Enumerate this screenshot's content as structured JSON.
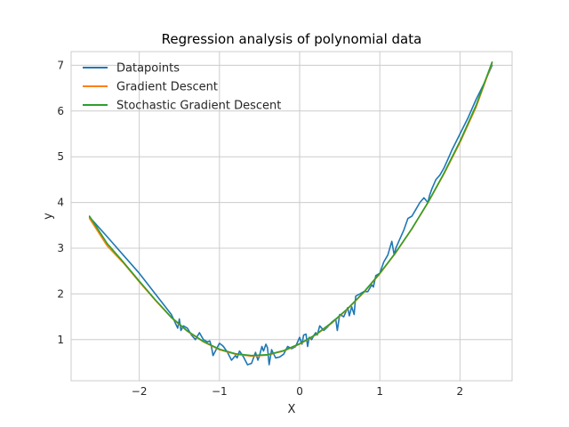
{
  "chart_data": {
    "type": "line",
    "title": "Regression analysis of polynomial data",
    "xlabel": "X",
    "ylabel": "y",
    "xlim": [
      -2.85,
      2.65
    ],
    "ylim": [
      0.1,
      7.3
    ],
    "xticks": [
      -2,
      -1,
      0,
      1,
      2
    ],
    "xtick_labels": [
      "−2",
      "−1",
      "0",
      "1",
      "2"
    ],
    "yticks": [
      1,
      2,
      3,
      4,
      5,
      6,
      7
    ],
    "ytick_labels": [
      "1",
      "2",
      "3",
      "4",
      "5",
      "6",
      "7"
    ],
    "grid": true,
    "legend_position": "top-left",
    "series": [
      {
        "name": "Datapoints",
        "color": "#1f77b4",
        "x": [
          -2.62,
          -2.4,
          -2.2,
          -2.0,
          -1.8,
          -1.6,
          -1.52,
          -1.5,
          -1.48,
          -1.45,
          -1.4,
          -1.35,
          -1.3,
          -1.25,
          -1.2,
          -1.15,
          -1.12,
          -1.1,
          -1.08,
          -1.0,
          -0.97,
          -0.95,
          -0.9,
          -0.85,
          -0.8,
          -0.78,
          -0.75,
          -0.7,
          -0.65,
          -0.6,
          -0.55,
          -0.52,
          -0.5,
          -0.47,
          -0.45,
          -0.42,
          -0.4,
          -0.38,
          -0.35,
          -0.3,
          -0.25,
          -0.2,
          -0.15,
          -0.1,
          -0.05,
          0.0,
          0.03,
          0.05,
          0.08,
          0.1,
          0.12,
          0.15,
          0.18,
          0.2,
          0.22,
          0.25,
          0.3,
          0.35,
          0.4,
          0.45,
          0.47,
          0.5,
          0.55,
          0.6,
          0.62,
          0.65,
          0.68,
          0.7,
          0.75,
          0.8,
          0.85,
          0.9,
          0.92,
          0.95,
          1.0,
          1.05,
          1.1,
          1.15,
          1.18,
          1.2,
          1.25,
          1.3,
          1.35,
          1.4,
          1.45,
          1.5,
          1.55,
          1.6,
          1.62,
          1.65,
          1.7,
          1.75,
          1.8,
          1.85,
          1.9,
          2.0,
          2.1,
          2.2,
          2.3,
          2.4
        ],
        "y": [
          3.68,
          3.25,
          2.85,
          2.45,
          2.0,
          1.55,
          1.25,
          1.45,
          1.2,
          1.3,
          1.25,
          1.1,
          1.0,
          1.15,
          1.0,
          0.95,
          0.97,
          0.85,
          0.65,
          0.92,
          0.88,
          0.85,
          0.72,
          0.55,
          0.65,
          0.6,
          0.75,
          0.62,
          0.45,
          0.48,
          0.72,
          0.55,
          0.65,
          0.85,
          0.75,
          0.9,
          0.82,
          0.45,
          0.78,
          0.6,
          0.62,
          0.68,
          0.85,
          0.8,
          0.85,
          1.05,
          0.9,
          1.1,
          1.12,
          0.85,
          1.05,
          1.0,
          1.1,
          1.15,
          1.1,
          1.3,
          1.2,
          1.28,
          1.38,
          1.45,
          1.2,
          1.55,
          1.5,
          1.7,
          1.52,
          1.72,
          1.55,
          1.95,
          2.0,
          2.05,
          2.05,
          2.2,
          2.15,
          2.4,
          2.45,
          2.7,
          2.85,
          3.15,
          2.85,
          3.0,
          3.2,
          3.4,
          3.65,
          3.7,
          3.85,
          4.0,
          4.1,
          4.0,
          4.15,
          4.3,
          4.5,
          4.6,
          4.75,
          4.95,
          5.15,
          5.5,
          5.85,
          6.25,
          6.6,
          7.0
        ]
      },
      {
        "name": "Gradient Descent",
        "color": "#ff7f0e",
        "x": [
          -2.62,
          -2.4,
          -2.2,
          -2.0,
          -1.8,
          -1.6,
          -1.4,
          -1.2,
          -1.0,
          -0.8,
          -0.6,
          -0.4,
          -0.2,
          0.0,
          0.2,
          0.4,
          0.6,
          0.8,
          1.0,
          1.2,
          1.4,
          1.6,
          1.8,
          2.0,
          2.2,
          2.4
        ],
        "y": [
          3.65,
          3.05,
          2.68,
          2.26,
          1.86,
          1.48,
          1.18,
          0.95,
          0.78,
          0.68,
          0.64,
          0.66,
          0.75,
          0.9,
          1.1,
          1.36,
          1.67,
          2.03,
          2.44,
          2.9,
          3.42,
          3.99,
          4.62,
          5.31,
          6.08,
          7.05
        ]
      },
      {
        "name": "Stochastic Gradient Descent",
        "color": "#2ca02c",
        "x": [
          -2.62,
          -2.4,
          -2.2,
          -2.0,
          -1.8,
          -1.6,
          -1.4,
          -1.2,
          -1.0,
          -0.8,
          -0.6,
          -0.4,
          -0.2,
          0.0,
          0.2,
          0.4,
          0.6,
          0.8,
          1.0,
          1.2,
          1.4,
          1.6,
          1.8,
          2.0,
          2.2,
          2.4
        ],
        "y": [
          3.7,
          3.1,
          2.7,
          2.28,
          1.87,
          1.49,
          1.19,
          0.96,
          0.79,
          0.69,
          0.65,
          0.67,
          0.76,
          0.91,
          1.11,
          1.37,
          1.68,
          2.04,
          2.45,
          2.91,
          3.43,
          4.0,
          4.64,
          5.34,
          6.12,
          7.07
        ]
      }
    ]
  }
}
